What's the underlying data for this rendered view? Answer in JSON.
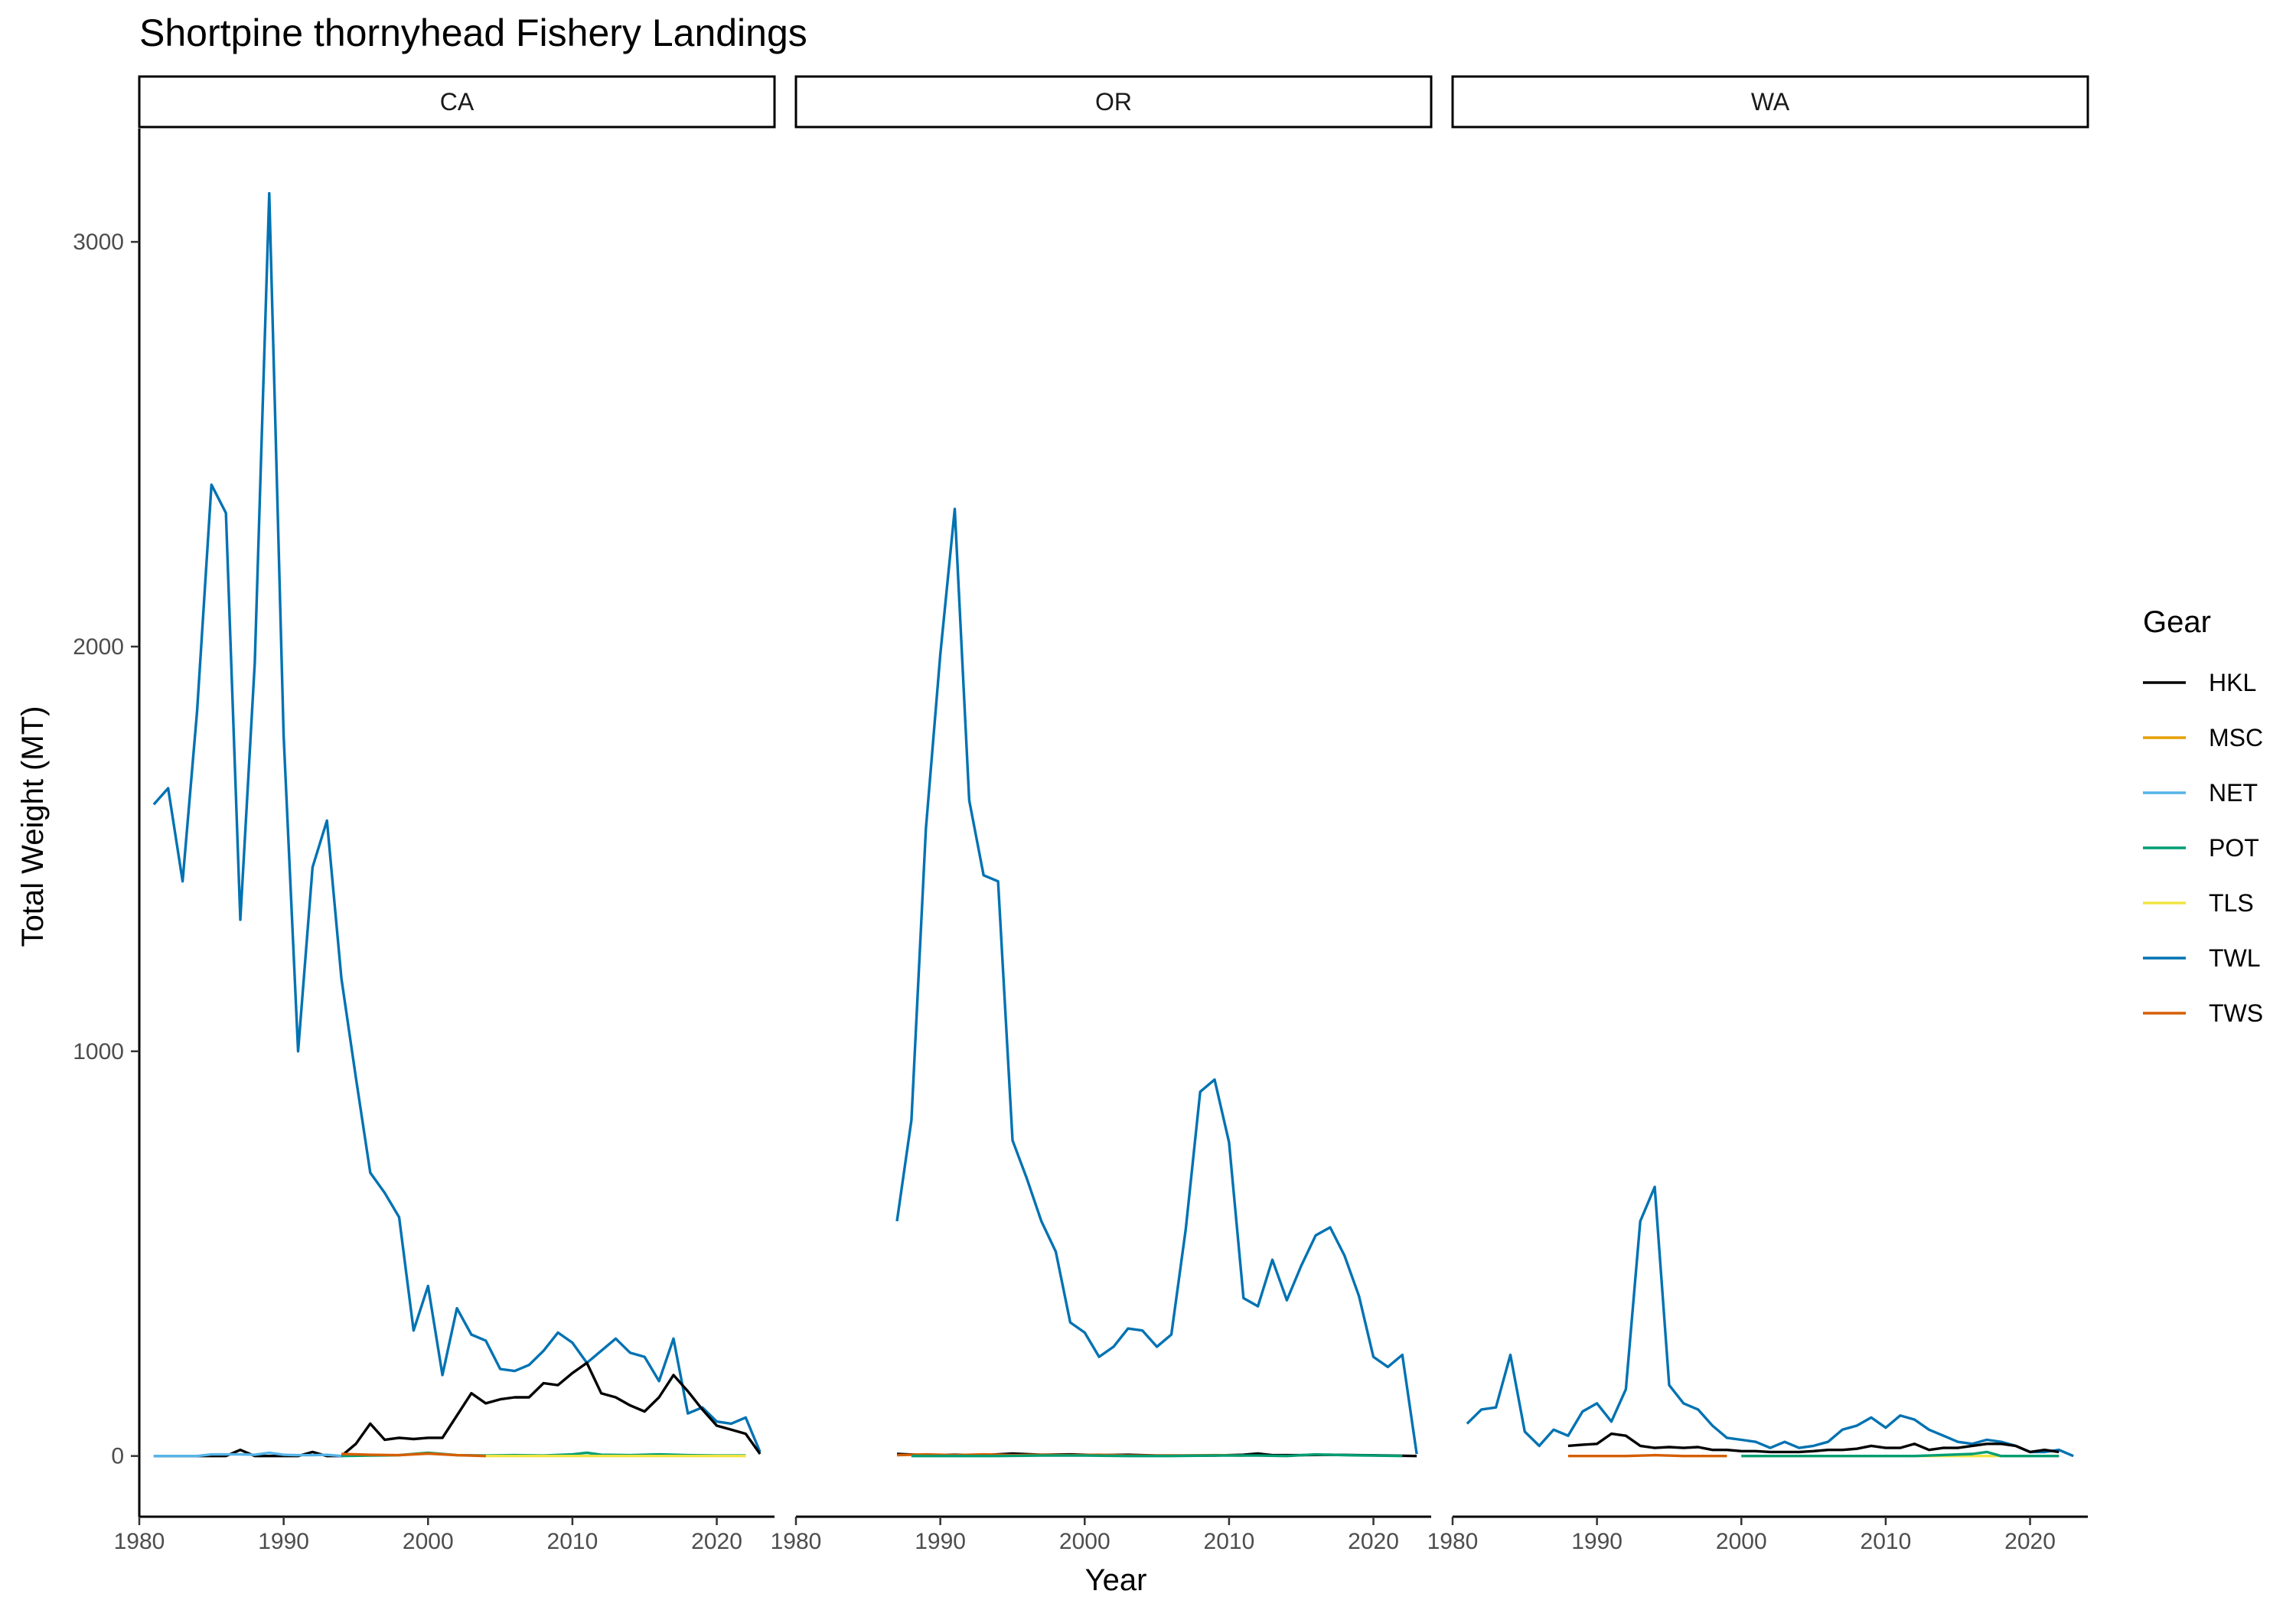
{
  "chart_data": {
    "type": "line",
    "title": "Shortpine thornyhead Fishery Landings",
    "xlabel": "Year",
    "ylabel": "Total Weight (MT)",
    "xlim": [
      1980,
      2024
    ],
    "ylim": [
      -150,
      3280
    ],
    "x_ticks": [
      "1980",
      "1990",
      "2000",
      "2010",
      "2020"
    ],
    "y_ticks": [
      "0",
      "1000",
      "2000",
      "3000"
    ],
    "grid": false,
    "legend": {
      "title": "Gear",
      "position": "right",
      "entries": [
        {
          "name": "HKL",
          "color": "#000000"
        },
        {
          "name": "MSC",
          "color": "#E69F00"
        },
        {
          "name": "NET",
          "color": "#56B4E9"
        },
        {
          "name": "POT",
          "color": "#009E73"
        },
        {
          "name": "TLS",
          "color": "#F0E442"
        },
        {
          "name": "TWL",
          "color": "#0072B2"
        },
        {
          "name": "TWS",
          "color": "#D55E00"
        }
      ]
    },
    "panels": [
      {
        "label": "CA",
        "series": [
          {
            "name": "TWL",
            "x": [
              1981,
              1982,
              1983,
              1984,
              1985,
              1986,
              1987,
              1988,
              1989,
              1990,
              1991,
              1992,
              1993,
              1994,
              1995,
              1996,
              1997,
              1998,
              1999,
              2000,
              2001,
              2002,
              2003,
              2004,
              2005,
              2006,
              2007,
              2008,
              2009,
              2010,
              2011,
              2012,
              2013,
              2014,
              2015,
              2016,
              2017,
              2018,
              2019,
              2020,
              2021,
              2022,
              2023
            ],
            "y": [
              1610,
              1650,
              1420,
              1840,
              2400,
              2330,
              1325,
              1960,
              3120,
              1780,
              1000,
              1455,
              1570,
              1180,
              935,
              700,
              650,
              590,
              310,
              420,
              200,
              365,
              300,
              285,
              215,
              210,
              225,
              260,
              305,
              280,
              230,
              260,
              290,
              255,
              245,
              185,
              290,
              105,
              120,
              85,
              80,
              95,
              10
            ]
          },
          {
            "name": "HKL",
            "x": [
              1981,
              1982,
              1983,
              1984,
              1985,
              1986,
              1987,
              1988,
              1989,
              1990,
              1991,
              1992,
              1993,
              1994,
              1995,
              1996,
              1997,
              1998,
              1999,
              2000,
              2001,
              2002,
              2003,
              2004,
              2005,
              2006,
              2007,
              2008,
              2009,
              2010,
              2011,
              2012,
              2013,
              2014,
              2015,
              2016,
              2017,
              2018,
              2019,
              2020,
              2021,
              2022,
              2023
            ],
            "y": [
              0,
              0,
              0,
              0,
              0,
              0,
              15,
              0,
              0,
              0,
              0,
              10,
              0,
              0,
              30,
              80,
              40,
              45,
              42,
              45,
              45,
              100,
              155,
              130,
              140,
              145,
              145,
              180,
              175,
              205,
              230,
              155,
              145,
              125,
              110,
              145,
              200,
              160,
              115,
              75,
              65,
              55,
              5
            ]
          },
          {
            "name": "NET",
            "x": [
              1981,
              1982,
              1983,
              1984,
              1985,
              1986,
              1987,
              1988,
              1989,
              1990,
              1991,
              1992,
              1993,
              1994
            ],
            "y": [
              0,
              0,
              0,
              0,
              4,
              4,
              4,
              3,
              8,
              3,
              2,
              2,
              3,
              0
            ]
          },
          {
            "name": "POT",
            "x": [
              1994,
              1996,
              1998,
              2000,
              2002,
              2004,
              2006,
              2008,
              2010,
              2011,
              2012,
              2014,
              2016,
              2018,
              2020,
              2022
            ],
            "y": [
              0,
              1,
              2,
              8,
              2,
              1,
              2,
              1,
              4,
              8,
              3,
              2,
              4,
              2,
              1,
              1
            ]
          },
          {
            "name": "TLS",
            "x": [
              2004,
              2006,
              2008,
              2010,
              2012,
              2014,
              2016,
              2018,
              2020,
              2022
            ],
            "y": [
              0,
              0,
              0,
              0,
              0,
              0,
              0,
              0,
              0,
              0
            ]
          },
          {
            "name": "TWS",
            "x": [
              1994,
              1996,
              1998,
              2000,
              2002,
              2004
            ],
            "y": [
              5,
              3,
              2,
              6,
              2,
              0
            ]
          }
        ]
      },
      {
        "label": "OR",
        "series": [
          {
            "name": "TWL",
            "x": [
              1987,
              1988,
              1989,
              1990,
              1991,
              1992,
              1993,
              1994,
              1995,
              1996,
              1997,
              1998,
              1999,
              2000,
              2001,
              2002,
              2003,
              2004,
              2005,
              2006,
              2007,
              2008,
              2009,
              2010,
              2011,
              2012,
              2013,
              2014,
              2015,
              2016,
              2017,
              2018,
              2019,
              2020,
              2021,
              2022,
              2023
            ],
            "y": [
              580,
              830,
              1550,
              1980,
              2340,
              1620,
              1435,
              1420,
              780,
              685,
              580,
              505,
              330,
              305,
              245,
              270,
              315,
              310,
              270,
              300,
              560,
              900,
              930,
              775,
              390,
              370,
              485,
              385,
              470,
              545,
              565,
              495,
              395,
              245,
              220,
              250,
              5
            ]
          },
          {
            "name": "HKL",
            "x": [
              1987,
              1989,
              1991,
              1993,
              1995,
              1997,
              1999,
              2001,
              2003,
              2005,
              2007,
              2009,
              2011,
              2012,
              2013,
              2015,
              2017,
              2019,
              2021,
              2023
            ],
            "y": [
              5,
              2,
              3,
              2,
              6,
              3,
              4,
              2,
              3,
              1,
              1,
              1,
              3,
              6,
              2,
              2,
              3,
              2,
              1,
              0
            ]
          },
          {
            "name": "TWS",
            "x": [
              1987,
              1989,
              1991,
              1993,
              1995,
              1997,
              1999,
              2001,
              2003,
              2005,
              2007,
              2009,
              2011
            ],
            "y": [
              2,
              4,
              2,
              4,
              2,
              3,
              2,
              3,
              1,
              1,
              1,
              2,
              1
            ]
          },
          {
            "name": "POT",
            "x": [
              1988,
              1991,
              1994,
              1997,
              2000,
              2003,
              2006,
              2009,
              2012,
              2014,
              2016,
              2018,
              2020,
              2022
            ],
            "y": [
              0,
              0,
              0,
              1,
              1,
              0,
              0,
              1,
              1,
              0,
              4,
              2,
              1,
              0
            ]
          }
        ]
      },
      {
        "label": "WA",
        "series": [
          {
            "name": "TWL",
            "x": [
              1981,
              1982,
              1983,
              1984,
              1985,
              1986,
              1987,
              1988,
              1989,
              1990,
              1991,
              1992,
              1993,
              1994,
              1995,
              1996,
              1997,
              1998,
              1999,
              2000,
              2001,
              2002,
              2003,
              2004,
              2005,
              2006,
              2007,
              2008,
              2009,
              2010,
              2011,
              2012,
              2013,
              2014,
              2015,
              2016,
              2017,
              2018,
              2019,
              2020,
              2021,
              2022,
              2023
            ],
            "y": [
              80,
              115,
              120,
              250,
              60,
              25,
              65,
              50,
              110,
              130,
              85,
              165,
              580,
              665,
              175,
              130,
              115,
              75,
              45,
              40,
              35,
              20,
              35,
              20,
              25,
              35,
              65,
              75,
              95,
              70,
              100,
              90,
              65,
              50,
              35,
              30,
              40,
              35,
              25,
              10,
              10,
              15,
              0
            ]
          },
          {
            "name": "HKL",
            "x": [
              1988,
              1989,
              1990,
              1991,
              1992,
              1993,
              1994,
              1995,
              1996,
              1997,
              1998,
              1999,
              2000,
              2001,
              2002,
              2003,
              2004,
              2005,
              2006,
              2007,
              2008,
              2009,
              2010,
              2011,
              2012,
              2013,
              2014,
              2015,
              2016,
              2017,
              2018,
              2019,
              2020,
              2021,
              2022
            ],
            "y": [
              25,
              28,
              30,
              55,
              50,
              25,
              20,
              22,
              20,
              22,
              15,
              15,
              12,
              12,
              10,
              10,
              10,
              12,
              15,
              15,
              18,
              25,
              20,
              20,
              30,
              15,
              20,
              20,
              25,
              30,
              30,
              25,
              10,
              15,
              10
            ]
          },
          {
            "name": "TWS",
            "x": [
              1988,
              1990,
              1992,
              1994,
              1996,
              1998,
              1999
            ],
            "y": [
              0,
              0,
              0,
              2,
              0,
              0,
              0
            ]
          },
          {
            "name": "TLS",
            "x": [
              2000,
              2004,
              2008,
              2012,
              2016,
              2020
            ],
            "y": [
              0,
              0,
              0,
              0,
              0,
              0
            ]
          },
          {
            "name": "POT",
            "x": [
              2000,
              2004,
              2008,
              2012,
              2016,
              2017,
              2018,
              2020,
              2022
            ],
            "y": [
              0,
              0,
              0,
              0,
              5,
              10,
              0,
              0,
              0
            ]
          }
        ]
      }
    ]
  }
}
